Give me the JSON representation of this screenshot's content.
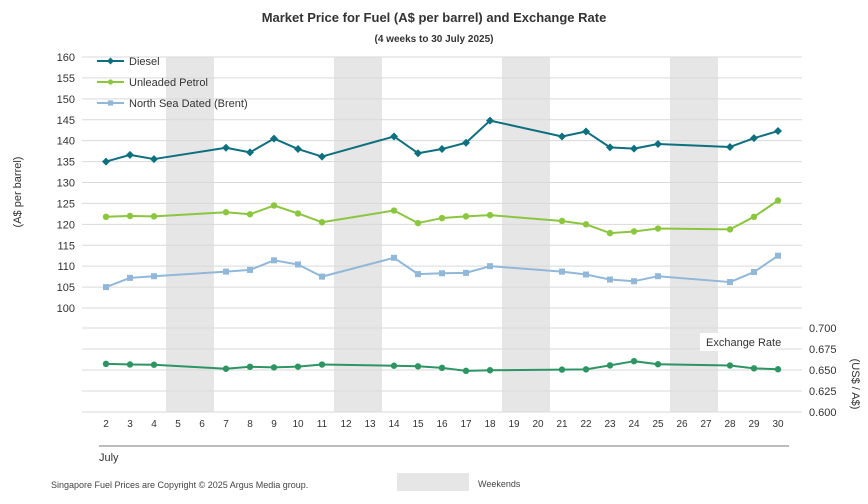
{
  "chart_data": {
    "type": "line",
    "title": "Market Price for Fuel (A$ per barrel) and Exchange Rate",
    "subtitle": "(4 weeks to 30 July 2025)",
    "x": [
      2,
      3,
      4,
      5,
      6,
      7,
      8,
      9,
      10,
      11,
      12,
      13,
      14,
      15,
      16,
      17,
      18,
      19,
      20,
      21,
      22,
      23,
      24,
      25,
      26,
      27,
      28,
      29,
      30
    ],
    "x_group_label": "July",
    "weekends": [
      [
        5,
        6
      ],
      [
        12,
        13
      ],
      [
        19,
        20
      ],
      [
        26,
        27
      ]
    ],
    "left_axis": {
      "label": "(A$ per barrel)",
      "ylim": [
        100,
        160
      ],
      "ticks": [
        100,
        105,
        110,
        115,
        120,
        125,
        130,
        135,
        140,
        145,
        150,
        155,
        160
      ]
    },
    "right_axis": {
      "label": "(US$ / A$)",
      "ylim": [
        0.6,
        0.7
      ],
      "ticks": [
        "0.600",
        "0.625",
        "0.650",
        "0.675",
        "0.700"
      ]
    },
    "series": [
      {
        "name": "Diesel",
        "color": "#0e6f7f",
        "marker": "diamond",
        "axis": "left",
        "x": [
          2,
          3,
          4,
          7,
          8,
          9,
          10,
          11,
          14,
          15,
          16,
          17,
          18,
          21,
          22,
          23,
          24,
          25,
          28,
          29,
          30
        ],
        "values": [
          135.0,
          136.6,
          135.6,
          138.3,
          137.2,
          140.5,
          138.0,
          136.2,
          141.0,
          137.0,
          138.0,
          139.5,
          144.8,
          141.0,
          142.2,
          138.4,
          138.1,
          139.2,
          138.5,
          140.6,
          142.3
        ]
      },
      {
        "name": "Unleaded Petrol",
        "color": "#8cc63f",
        "marker": "circle",
        "axis": "left",
        "x": [
          2,
          3,
          4,
          7,
          8,
          9,
          10,
          11,
          14,
          15,
          16,
          17,
          18,
          21,
          22,
          23,
          24,
          25,
          28,
          29,
          30
        ],
        "values": [
          121.8,
          122.0,
          121.9,
          122.9,
          122.4,
          124.5,
          122.6,
          120.5,
          123.3,
          120.3,
          121.5,
          121.9,
          122.2,
          120.8,
          120.0,
          117.9,
          118.3,
          119.0,
          118.8,
          121.8,
          125.7
        ]
      },
      {
        "name": "North Sea Dated (Brent)",
        "color": "#91b8d9",
        "marker": "square",
        "axis": "left",
        "x": [
          2,
          3,
          4,
          7,
          8,
          9,
          10,
          11,
          14,
          15,
          16,
          17,
          18,
          21,
          22,
          23,
          24,
          25,
          28,
          29,
          30
        ],
        "values": [
          105.0,
          107.2,
          107.6,
          108.7,
          109.1,
          111.4,
          110.4,
          107.5,
          112.0,
          108.1,
          108.3,
          108.4,
          110.0,
          108.7,
          108.0,
          106.8,
          106.4,
          107.6,
          106.2,
          108.6,
          112.5
        ]
      },
      {
        "name": "Exchange Rate",
        "color": "#2e9463",
        "marker": "circle",
        "axis": "right",
        "x": [
          2,
          3,
          4,
          7,
          8,
          9,
          10,
          11,
          14,
          15,
          16,
          17,
          18,
          21,
          22,
          23,
          24,
          25,
          28,
          29,
          30
        ],
        "values": [
          0.6573,
          0.6566,
          0.6563,
          0.6515,
          0.6538,
          0.6531,
          0.654,
          0.6565,
          0.6551,
          0.6544,
          0.6526,
          0.649,
          0.6497,
          0.6505,
          0.6508,
          0.6555,
          0.6605,
          0.6569,
          0.6554,
          0.652,
          0.6509
        ]
      }
    ],
    "footnote": "Singapore Fuel Prices are Copyright © 2025 Argus Media group.",
    "weekend_legend": "Weekends"
  }
}
